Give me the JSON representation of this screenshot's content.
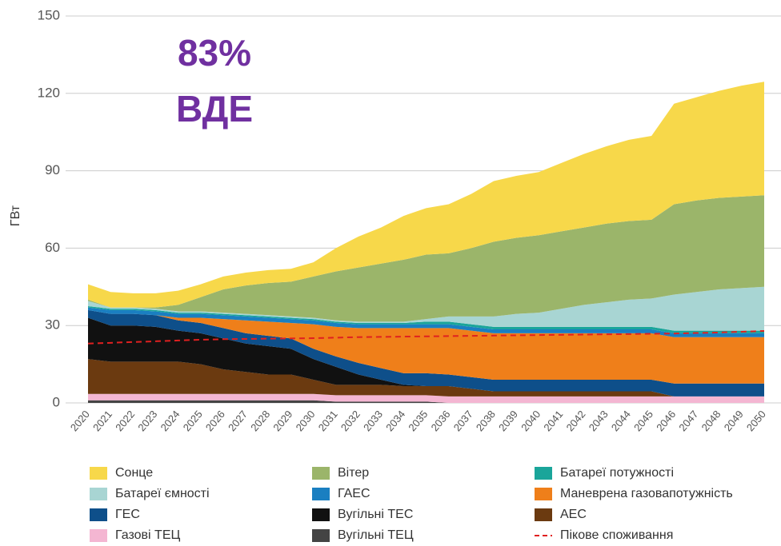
{
  "chart_data": {
    "type": "stacked_area",
    "annotation": [
      "83%",
      "ВДЕ"
    ],
    "ylabel": "ГВт",
    "ylim": [
      0,
      150
    ],
    "yticks": [
      0,
      30,
      60,
      90,
      120,
      150
    ],
    "grid": true,
    "categories": [
      "2020",
      "2021",
      "2022",
      "2023",
      "2024",
      "2025",
      "2026",
      "2027",
      "2028",
      "2029",
      "2030",
      "2031",
      "2032",
      "2033",
      "2034",
      "2035",
      "2036",
      "2037",
      "2038",
      "2039",
      "2040",
      "2041",
      "2042",
      "2043",
      "2044",
      "2045",
      "2046",
      "2047",
      "2048",
      "2049",
      "2050"
    ],
    "series": [
      {
        "name": "Вугільні ТЕЦ",
        "color": "#444444",
        "values": [
          1,
          1,
          1,
          1,
          1,
          1,
          1,
          1,
          1,
          1,
          1,
          0.5,
          0.5,
          0.5,
          0.5,
          0.5,
          0,
          0,
          0,
          0,
          0,
          0,
          0,
          0,
          0,
          0,
          0,
          0,
          0,
          0,
          0
        ]
      },
      {
        "name": "Газові ТЕЦ",
        "color": "#f4b6d2",
        "values": [
          2.5,
          2.5,
          2.5,
          2.5,
          2.5,
          2.5,
          2.5,
          2.5,
          2.5,
          2.5,
          2.5,
          2.5,
          2.5,
          2.5,
          2.5,
          2.5,
          2.5,
          2.5,
          2.5,
          2.5,
          2.5,
          2.5,
          2.5,
          2.5,
          2.5,
          2.5,
          2.5,
          2.5,
          2.5,
          2.5,
          2.5
        ]
      },
      {
        "name": "АЕС",
        "color": "#6b3a10",
        "values": [
          13.5,
          12.5,
          12.5,
          12.5,
          12.5,
          11.5,
          9.5,
          8.5,
          7.5,
          7.5,
          5.5,
          4,
          4,
          4,
          3.5,
          3.5,
          4,
          3,
          2,
          2,
          2,
          2,
          2,
          2,
          2,
          2,
          0,
          0,
          0,
          0,
          0
        ]
      },
      {
        "name": "Вугільні ТЕС",
        "color": "#111111",
        "values": [
          16,
          14,
          14,
          13.5,
          12,
          12,
          12,
          11,
          11,
          10,
          8,
          7,
          4,
          2,
          0.5,
          0,
          0,
          0,
          0,
          0,
          0,
          0,
          0,
          0,
          0,
          0,
          0,
          0,
          0,
          0,
          0
        ]
      },
      {
        "name": "ГЕС",
        "color": "#0e4f8a",
        "values": [
          3,
          4.5,
          4.5,
          4.5,
          4,
          4,
          4,
          4,
          4,
          4,
          4,
          4,
          4.5,
          4.5,
          4.5,
          5,
          4.5,
          4.5,
          4.5,
          4.5,
          4.5,
          4.5,
          4.5,
          4.5,
          4.5,
          4.5,
          5,
          5,
          5,
          5,
          5
        ]
      },
      {
        "name": "Маневрена газовапотужність",
        "color": "#ef7f1a",
        "values": [
          0,
          0,
          0,
          0,
          1,
          2,
          3.5,
          5,
          5.5,
          6,
          9.5,
          11.5,
          13.5,
          15.5,
          17.5,
          17.5,
          18,
          18,
          18,
          18,
          18,
          18,
          18,
          18,
          18,
          18,
          18,
          18,
          18,
          18,
          18
        ]
      },
      {
        "name": "ГАЕС",
        "color": "#1a7fc1",
        "values": [
          1,
          1.5,
          1.5,
          1.5,
          1.5,
          1.5,
          1.5,
          1.5,
          1.5,
          1.5,
          1.5,
          1.5,
          1.5,
          1.5,
          1.5,
          1.5,
          1.5,
          1.5,
          1.5,
          1.5,
          1.5,
          1.5,
          1.5,
          1.5,
          1.5,
          1.5,
          1.5,
          1.5,
          1.5,
          1.5,
          1.5
        ]
      },
      {
        "name": "Батареї потужності",
        "color": "#1aa59a",
        "values": [
          0.5,
          0.5,
          0.5,
          0.5,
          0.5,
          0.5,
          0.5,
          0.5,
          0.5,
          0.5,
          0.5,
          0.5,
          0.5,
          0.5,
          0.5,
          1,
          1,
          1,
          1,
          1,
          1,
          1,
          1,
          1,
          1,
          1,
          1,
          1,
          1,
          1,
          1
        ]
      },
      {
        "name": "Батареї ємності",
        "color": "#a8d5d3",
        "values": [
          2,
          0.5,
          0.5,
          0.5,
          0.5,
          0.5,
          0.5,
          0.5,
          0.5,
          0.5,
          0.5,
          0.5,
          0.5,
          0.5,
          0.5,
          1,
          2,
          3,
          4,
          5,
          5.5,
          7,
          8.5,
          9.5,
          10.5,
          11,
          14,
          15,
          16,
          16.5,
          17
        ]
      },
      {
        "name": "Вітер",
        "color": "#9bb56a",
        "values": [
          0.5,
          0,
          0,
          0.5,
          2.5,
          5.5,
          9,
          11,
          12.5,
          13.5,
          16,
          19,
          21,
          22.5,
          24,
          25,
          24.5,
          26.5,
          29,
          29.5,
          30,
          30,
          30,
          30.5,
          30.5,
          30.5,
          35,
          35.5,
          35.5,
          35.5,
          35.5
        ]
      },
      {
        "name": "Сонце",
        "color": "#f7d84a",
        "values": [
          6,
          6,
          5.5,
          5.5,
          5.5,
          5,
          5,
          5,
          5,
          5,
          5.5,
          9,
          12,
          14,
          17,
          18,
          19,
          21,
          23.5,
          24,
          24.5,
          26.5,
          28.5,
          30,
          31.5,
          32.5,
          39,
          40,
          41.5,
          43,
          44
        ]
      }
    ],
    "peak": {
      "name": "Пікове споживання",
      "color": "#e02020",
      "values": [
        23,
        23.3,
        23.6,
        23.9,
        24.2,
        24.5,
        24.7,
        24.8,
        24.9,
        25,
        25.1,
        25.3,
        25.5,
        25.6,
        25.7,
        25.8,
        25.9,
        26,
        26.1,
        26.2,
        26.3,
        26.4,
        26.5,
        26.6,
        26.7,
        26.8,
        26.9,
        27.1,
        27.3,
        27.6,
        27.9
      ]
    }
  }
}
